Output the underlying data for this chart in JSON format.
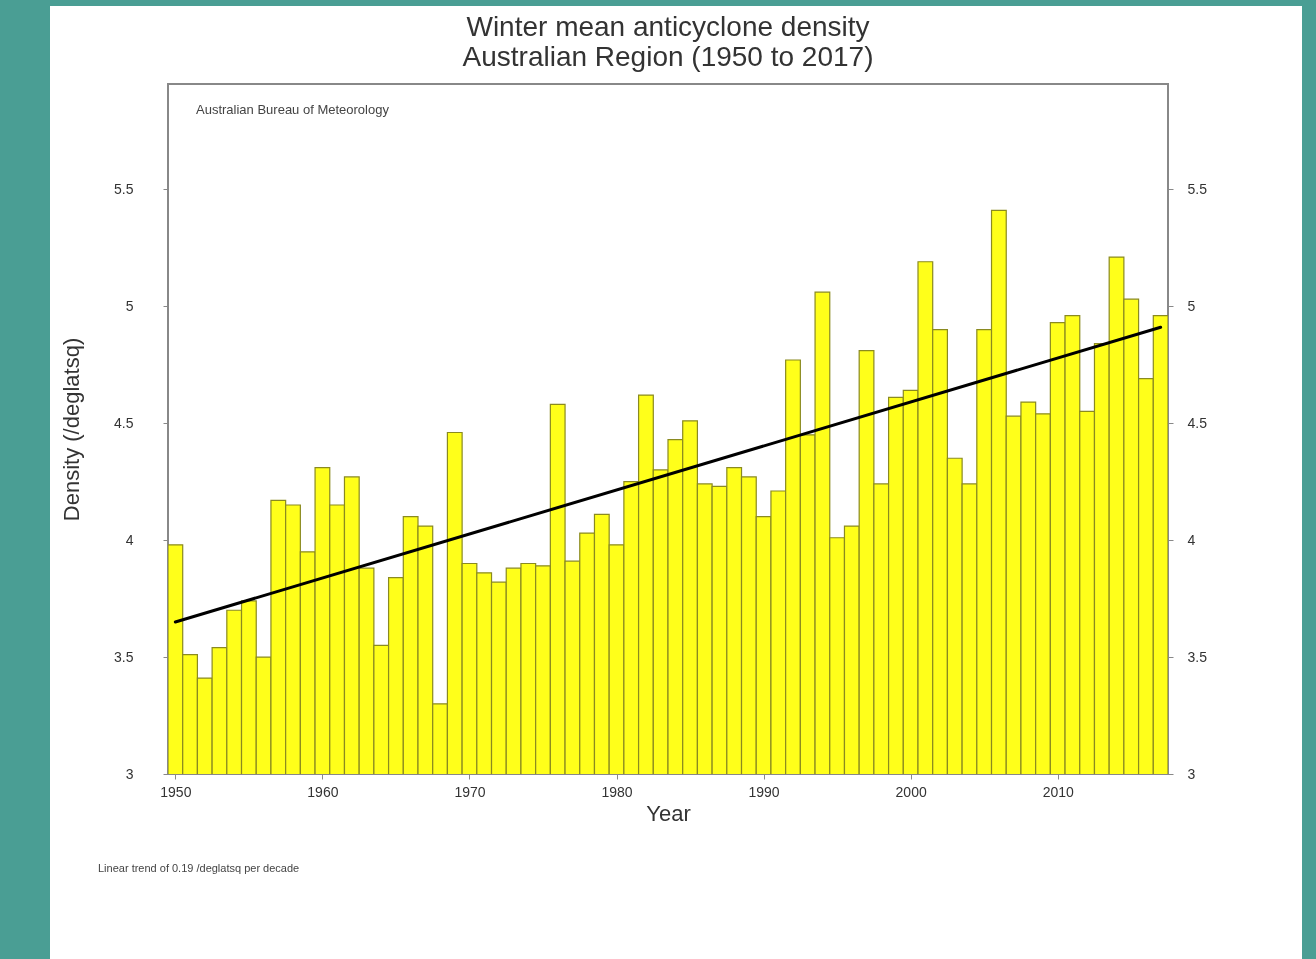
{
  "chart_data": {
    "type": "bar",
    "title": [
      "Winter mean anticyclone density",
      "Australian Region (1950 to 2017)"
    ],
    "xlabel": "Year",
    "ylabel": "Density (/deglatsq)",
    "annotations": [
      "Australian Bureau of Meteorology",
      "Linear trend of 0.19 /deglatsq per decade"
    ],
    "x": [
      1950,
      1951,
      1952,
      1953,
      1954,
      1955,
      1956,
      1957,
      1958,
      1959,
      1960,
      1961,
      1962,
      1963,
      1964,
      1965,
      1966,
      1967,
      1968,
      1969,
      1970,
      1971,
      1972,
      1973,
      1974,
      1975,
      1976,
      1977,
      1978,
      1979,
      1980,
      1981,
      1982,
      1983,
      1984,
      1985,
      1986,
      1987,
      1988,
      1989,
      1990,
      1991,
      1992,
      1993,
      1994,
      1995,
      1996,
      1997,
      1998,
      1999,
      2000,
      2001,
      2002,
      2003,
      2004,
      2005,
      2006,
      2007,
      2008,
      2009,
      2010,
      2011,
      2012,
      2013,
      2014,
      2015,
      2016,
      2017
    ],
    "series": [
      {
        "color": "#ffff1a",
        "values": [
          3.98,
          3.51,
          3.41,
          3.54,
          3.7,
          3.74,
          3.5,
          4.17,
          4.15,
          3.95,
          4.31,
          4.15,
          4.27,
          3.88,
          3.55,
          3.84,
          4.1,
          4.06,
          3.3,
          4.46,
          3.9,
          3.86,
          3.82,
          3.88,
          3.9,
          3.89,
          4.58,
          3.91,
          4.03,
          4.11,
          3.98,
          4.25,
          4.62,
          4.3,
          4.43,
          4.51,
          4.24,
          4.23,
          4.31,
          4.27,
          4.1,
          4.21,
          4.77,
          4.45,
          5.06,
          4.01,
          4.06,
          4.81,
          4.24,
          4.61,
          4.64,
          5.19,
          4.9,
          4.35,
          4.24,
          4.9,
          5.41,
          4.53,
          4.59,
          4.54,
          4.93,
          4.96,
          4.55,
          4.84,
          5.21,
          5.03,
          4.69,
          4.96
        ]
      },
      {
        "type": "line",
        "color": "#000000",
        "x": [
          1950,
          2017
        ],
        "values": [
          3.65,
          4.91
        ]
      }
    ],
    "xlim": [
      1949.5,
      2017.5
    ],
    "xticks": [
      1950,
      1960,
      1970,
      1980,
      1990,
      2000,
      2010
    ],
    "ylim": [
      3,
      5.95
    ],
    "yticks": [
      3,
      3.5,
      4,
      4.5,
      5,
      5.5
    ],
    "y2lim": [
      3,
      5.95
    ],
    "y2ticks": [
      3,
      3.5,
      4,
      4.5,
      5,
      5.5
    ]
  }
}
